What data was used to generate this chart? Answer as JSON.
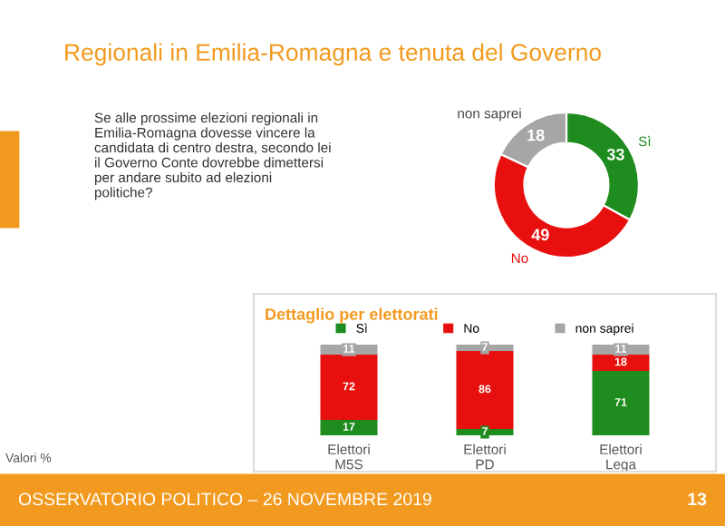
{
  "chart_data": [
    {
      "type": "donut",
      "title": "Regionali in Emilia-Romagna e tenuta del Governo",
      "subtitle": "Se alle prossime elezioni regionali in\nEmilia-Romagna dovesse vincere la\ncandidata di centro destra, secondo lei\nil Governo Conte dovrebbe dimettersi\nper andare subito ad elezioni\npolitiche?",
      "categories": [
        "Sì",
        "No",
        "non saprei"
      ],
      "values": [
        33,
        49,
        18
      ],
      "colors": [
        "#1e8c1e",
        "#e8100f",
        "#a6a6a6"
      ],
      "data_labels": true,
      "annotations": [
        "OSSERVATORIO POLITICO – 26 NOVEMBRE 2019",
        "13"
      ]
    },
    {
      "type": "bar",
      "stacked": true,
      "title": "Dettaglio per elettorati",
      "categories": [
        "Elettori\nM5S",
        "Elettori\nPD",
        "Elettori\nLega"
      ],
      "series": [
        {
          "name": "Sì",
          "color": "#1e8c1e",
          "values": [
            17,
            7,
            71
          ]
        },
        {
          "name": "No",
          "color": "#e8100f",
          "values": [
            72,
            86,
            18
          ]
        },
        {
          "name": "non saprei",
          "color": "#a6a6a6",
          "values": [
            11,
            7,
            11
          ]
        }
      ],
      "ylim": [
        0,
        100
      ],
      "tick_labels": "x",
      "data_labels": true,
      "legend": "top",
      "grid": false,
      "annotations": [
        "Valori %"
      ]
    }
  ]
}
